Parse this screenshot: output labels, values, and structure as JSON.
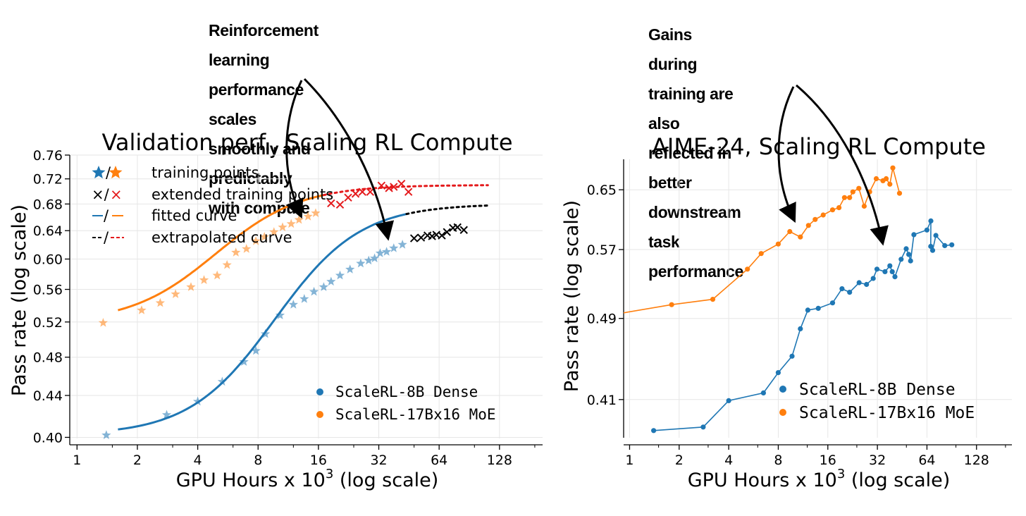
{
  "annotations": {
    "left": [
      "Reinforcement learning performance scales",
      "smoothly and predictably with compute"
    ],
    "right": [
      "Gains during training are also reflected in",
      "better downstream task performance"
    ]
  },
  "legend_labels": {
    "training": "training points",
    "extended": "extended training points",
    "fitted": "fitted curve",
    "extrapolated": "extrapolated curve",
    "mark_training_sep": "/",
    "mark_extended": "×/×",
    "mark_fitted_sep": "/",
    "mark_extrapolated": "--/--"
  },
  "chart_data": [
    {
      "type": "scatter",
      "title": "Validation perf., Scaling RL Compute",
      "xlabel": "GPU Hours x 10",
      "xlabel_sup": "3",
      "xlabel_suffix": " (log scale)",
      "ylabel": "Pass rate (log scale)",
      "xscale": "log2",
      "yscale": "log",
      "xlim": [
        0.92,
        210
      ],
      "ylim": [
        0.399,
        0.76
      ],
      "xticks": [
        1,
        2,
        4,
        8,
        16,
        32,
        64,
        128
      ],
      "yticks": [
        0.4,
        0.44,
        0.48,
        0.52,
        0.56,
        0.6,
        0.64,
        0.68,
        0.72,
        0.76
      ],
      "legend": [
        "ScaleRL-8B Dense",
        "ScaleRL-17Bx16 MoE"
      ],
      "colors": {
        "dense": "#1f77b4",
        "moe": "#ff7f0e",
        "extended_dense": "#000000",
        "extended_moe": "#e41a1c"
      },
      "series": [
        {
          "name": "ScaleRL-8B Dense",
          "training_points": [
            [
              1.4,
              0.402
            ],
            [
              2.8,
              0.421
            ],
            [
              4.0,
              0.434
            ],
            [
              5.3,
              0.454
            ],
            [
              6.8,
              0.475
            ],
            [
              7.8,
              0.487
            ],
            [
              8.7,
              0.506
            ],
            [
              10.3,
              0.528
            ],
            [
              12.0,
              0.541
            ],
            [
              13.6,
              0.548
            ],
            [
              15.2,
              0.557
            ],
            [
              17.0,
              0.563
            ],
            [
              18.5,
              0.57
            ],
            [
              20.5,
              0.578
            ],
            [
              23.0,
              0.586
            ],
            [
              26.0,
              0.594
            ],
            [
              28.5,
              0.598
            ],
            [
              30.5,
              0.601
            ],
            [
              32.5,
              0.608
            ],
            [
              35.0,
              0.61
            ],
            [
              38.0,
              0.615
            ],
            [
              42.0,
              0.62
            ]
          ],
          "fitted_curve": {
            "asymptote": 0.68,
            "start": 0.402,
            "midpoint": 11.0,
            "steepness": 2.05,
            "x_range": [
              1.6,
              44
            ]
          },
          "extended_points": [
            [
              48,
              0.629
            ],
            [
              52,
              0.63
            ],
            [
              56,
              0.633
            ],
            [
              59,
              0.632
            ],
            [
              62,
              0.634
            ],
            [
              66,
              0.633
            ],
            [
              70,
              0.638
            ],
            [
              75,
              0.644
            ],
            [
              79,
              0.645
            ],
            [
              85,
              0.641
            ]
          ],
          "extrapolated_range": [
            44,
            112
          ]
        },
        {
          "name": "ScaleRL-17Bx16 MoE",
          "training_points": [
            [
              1.35,
              0.519
            ],
            [
              2.1,
              0.534
            ],
            [
              2.6,
              0.543
            ],
            [
              3.1,
              0.554
            ],
            [
              3.7,
              0.563
            ],
            [
              4.3,
              0.572
            ],
            [
              5.0,
              0.578
            ],
            [
              5.6,
              0.592
            ],
            [
              6.2,
              0.609
            ],
            [
              7.0,
              0.614
            ],
            [
              7.8,
              0.625
            ],
            [
              8.6,
              0.631
            ],
            [
              9.6,
              0.638
            ],
            [
              10.6,
              0.645
            ],
            [
              11.7,
              0.65
            ],
            [
              12.8,
              0.656
            ],
            [
              14.2,
              0.661
            ],
            [
              15.5,
              0.666
            ]
          ],
          "fitted_curve": {
            "asymptote": 0.71,
            "start": 0.519,
            "midpoint": 5.3,
            "steepness": 2.05,
            "x_range": [
              1.6,
              17
            ]
          },
          "extended_points": [
            [
              18.5,
              0.681
            ],
            [
              20.5,
              0.679
            ],
            [
              22.5,
              0.69
            ],
            [
              24.5,
              0.696
            ],
            [
              26.5,
              0.699
            ],
            [
              29.0,
              0.699
            ],
            [
              33.0,
              0.709
            ],
            [
              36.0,
              0.705
            ],
            [
              38.0,
              0.707
            ],
            [
              41.5,
              0.712
            ],
            [
              45.0,
              0.699
            ]
          ],
          "extrapolated_range": [
            17,
            112
          ]
        }
      ]
    },
    {
      "type": "line",
      "title": "AIME-24, Scaling RL Compute",
      "xlabel": "GPU Hours x 10",
      "xlabel_sup": "3",
      "xlabel_suffix": " (log scale)",
      "ylabel": "Pass rate (log scale)",
      "xscale": "log2",
      "yscale": "log",
      "xlim": [
        0.92,
        210
      ],
      "ylim": [
        0.377,
        0.695
      ],
      "xticks": [
        1,
        2,
        4,
        8,
        16,
        32,
        64,
        128
      ],
      "yticks": [
        0.41,
        0.49,
        0.57,
        0.65
      ],
      "legend": [
        "ScaleRL-8B Dense",
        "ScaleRL-17Bx16 MoE"
      ],
      "colors": {
        "dense": "#1f77b4",
        "moe": "#ff7f0e"
      },
      "series": [
        {
          "name": "ScaleRL-8B Dense",
          "points": [
            [
              1.4,
              0.383
            ],
            [
              2.8,
              0.386
            ],
            [
              4.0,
              0.409
            ],
            [
              6.5,
              0.416
            ],
            [
              8.0,
              0.435
            ],
            [
              9.7,
              0.451
            ],
            [
              10.9,
              0.479
            ],
            [
              12.1,
              0.499
            ],
            [
              14.0,
              0.501
            ],
            [
              17.1,
              0.507
            ],
            [
              19.5,
              0.523
            ],
            [
              21.7,
              0.519
            ],
            [
              24.8,
              0.53
            ],
            [
              27.5,
              0.528
            ],
            [
              30.2,
              0.535
            ],
            [
              31.8,
              0.546
            ],
            [
              35.6,
              0.543
            ],
            [
              38.1,
              0.55
            ],
            [
              39.4,
              0.543
            ],
            [
              40.9,
              0.537
            ],
            [
              44.6,
              0.558
            ],
            [
              47.9,
              0.571
            ],
            [
              49.6,
              0.564
            ],
            [
              50.9,
              0.556
            ],
            [
              53.3,
              0.589
            ],
            [
              64.0,
              0.595
            ],
            [
              67.6,
              0.607
            ],
            [
              67.5,
              0.574
            ],
            [
              69.3,
              0.569
            ],
            [
              72.5,
              0.588
            ],
            [
              82.1,
              0.575
            ],
            [
              90.6,
              0.576
            ]
          ],
          "legend_name": "ScaleRL-8B Dense"
        },
        {
          "name": "ScaleRL-17Bx16 MoE",
          "points": [
            [
              0.92,
              0.496
            ],
            [
              1.8,
              0.505
            ],
            [
              3.2,
              0.511
            ],
            [
              5.2,
              0.546
            ],
            [
              6.3,
              0.565
            ],
            [
              8.0,
              0.577
            ],
            [
              9.4,
              0.593
            ],
            [
              10.9,
              0.586
            ],
            [
              12.2,
              0.601
            ],
            [
              13.4,
              0.609
            ],
            [
              15.0,
              0.615
            ],
            [
              17.1,
              0.622
            ],
            [
              18.7,
              0.625
            ],
            [
              20.2,
              0.639
            ],
            [
              21.7,
              0.639
            ],
            [
              22.7,
              0.647
            ],
            [
              24.7,
              0.652
            ],
            [
              26.6,
              0.627
            ],
            [
              28.7,
              0.647
            ],
            [
              31.5,
              0.666
            ],
            [
              34.6,
              0.663
            ],
            [
              36.2,
              0.666
            ],
            [
              38.1,
              0.658
            ],
            [
              39.7,
              0.682
            ],
            [
              43.6,
              0.645
            ]
          ],
          "legend_name": "ScaleRL-17Bx16 MoE"
        }
      ]
    }
  ]
}
